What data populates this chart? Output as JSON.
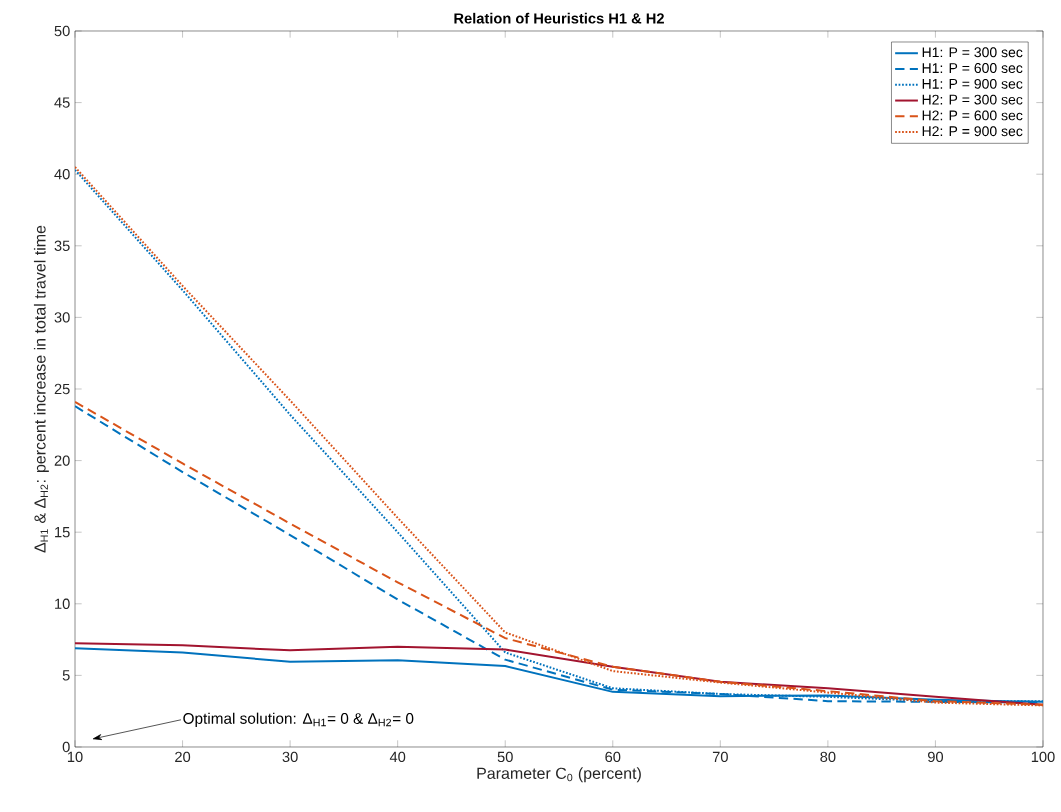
{
  "chart_data": {
    "type": "line",
    "title": "Relation of Heuristics H1 & H2",
    "xlabel": "Parameter C$_{0}$ (percent)",
    "ylabel": "Δ$_{H1}$ & Δ$_{H2}$:  percent increase in total travel time",
    "x": [
      10,
      20,
      30,
      40,
      50,
      60,
      70,
      80,
      90,
      100
    ],
    "series": [
      {
        "name": "H1: P = 300 sec",
        "color": "#0072bd",
        "line_style": "solid",
        "values": [
          6.9,
          6.6,
          5.95,
          6.05,
          5.65,
          3.85,
          3.55,
          3.6,
          3.3,
          3.15
        ]
      },
      {
        "name": "H1: P = 600 sec",
        "color": "#0072bd",
        "line_style": "dashed",
        "values": [
          23.8,
          19.2,
          14.8,
          10.3,
          6.1,
          4.0,
          3.7,
          3.2,
          3.15,
          3.1
        ]
      },
      {
        "name": "H1: P = 900 sec",
        "color": "#0072bd",
        "line_style": "dotted",
        "values": [
          40.3,
          31.9,
          23.2,
          15.0,
          6.6,
          4.1,
          3.7,
          3.5,
          3.2,
          3.2
        ]
      },
      {
        "name": "H2: P = 300 sec",
        "color": "#a2142f",
        "line_style": "solid",
        "values": [
          7.25,
          7.1,
          6.75,
          7.0,
          6.8,
          5.6,
          4.55,
          4.1,
          3.5,
          2.95
        ]
      },
      {
        "name": "H2: P = 600 sec",
        "color": "#d95319",
        "line_style": "dashed",
        "values": [
          24.1,
          19.8,
          15.6,
          11.5,
          7.6,
          5.6,
          4.55,
          3.9,
          3.2,
          2.95
        ]
      },
      {
        "name": "H2: P = 900 sec",
        "color": "#d95319",
        "line_style": "dotted",
        "values": [
          40.5,
          32.2,
          24.2,
          16.0,
          8.0,
          5.3,
          4.5,
          3.8,
          3.1,
          2.9
        ]
      }
    ],
    "annotations": [
      "Optimal solution: Δ$_{H1}$= 0  &  Δ$_{H2}$= 0"
    ],
    "xlim": [
      10,
      100
    ],
    "xticks": [
      10,
      20,
      30,
      40,
      50,
      60,
      70,
      80,
      90,
      100
    ],
    "ylim": [
      0,
      50
    ],
    "yticks": [
      0,
      5,
      10,
      15,
      20,
      25,
      30,
      35,
      40,
      45,
      50
    ],
    "grid": false,
    "legend": "top right",
    "marker": "none"
  }
}
